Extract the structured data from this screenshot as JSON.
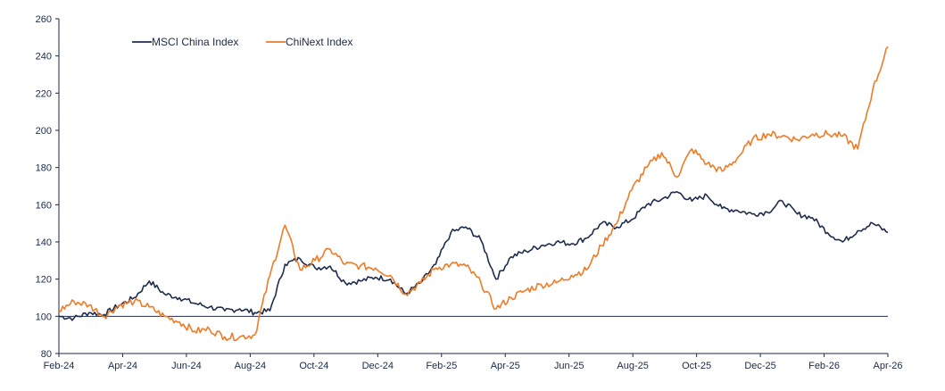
{
  "chart_data": {
    "type": "line",
    "title": "",
    "xlabel": "",
    "ylabel": "",
    "ylim": [
      80,
      260
    ],
    "yticks": [
      80,
      100,
      120,
      140,
      160,
      180,
      200,
      220,
      240,
      260
    ],
    "x_tick_labels": [
      "Feb-24",
      "Apr-24",
      "Jun-24",
      "Aug-24",
      "Oct-24",
      "Dec-24",
      "Feb-25",
      "Apr-25",
      "Jun-25",
      "Aug-25",
      "Oct-25",
      "Dec-25",
      "Feb-26",
      "Apr-26"
    ],
    "reference_line": 100,
    "legend_position": "top-left",
    "grid": false,
    "colors": {
      "axis": "#1a2a4a",
      "reference": "#1f2d4d"
    },
    "series": [
      {
        "name": "MSCI China Index",
        "color": "#1f2d4d",
        "x": [
          "Feb-24",
          "Feb-24",
          "Mar-24",
          "Mar-24",
          "Apr-24",
          "Apr-24",
          "May-24",
          "May-24",
          "Jun-24",
          "Jun-24",
          "Jul-24",
          "Jul-24",
          "Aug-24",
          "Aug-24",
          "Sep-24",
          "Sep-24",
          "Sep-24",
          "Oct-24",
          "Oct-24",
          "Nov-24",
          "Nov-24",
          "Dec-24",
          "Dec-24",
          "Jan-25",
          "Jan-25",
          "Feb-25",
          "Feb-25",
          "Mar-25",
          "Mar-25",
          "Mar-25",
          "Apr-25",
          "Apr-25",
          "May-25",
          "May-25",
          "Jun-25",
          "Jun-25",
          "Jul-25",
          "Jul-25",
          "Aug-25",
          "Aug-25",
          "Sep-25",
          "Sep-25",
          "Oct-25",
          "Oct-25",
          "Nov-25",
          "Nov-25",
          "Dec-25",
          "Dec-25",
          "Jan-26",
          "Jan-26",
          "Feb-26",
          "Feb-26",
          "Mar-26",
          "Mar-26",
          "Apr-26",
          "Apr-26"
        ],
        "values": [
          100,
          99,
          102,
          101,
          106,
          110,
          119,
          112,
          110,
          107,
          105,
          103,
          104,
          102,
          103,
          128,
          131,
          126,
          127,
          118,
          119,
          121,
          120,
          112,
          118,
          128,
          145,
          148,
          141,
          120,
          132,
          135,
          138,
          140,
          139,
          142,
          150,
          148,
          152,
          160,
          163,
          167,
          162,
          165,
          158,
          157,
          155,
          156,
          162,
          155,
          153,
          145,
          140,
          146,
          150,
          145
        ]
      },
      {
        "name": "ChiNext Index",
        "color": "#ee7b26",
        "x": [
          "Feb-24",
          "Feb-24",
          "Mar-24",
          "Mar-24",
          "Apr-24",
          "Apr-24",
          "May-24",
          "May-24",
          "Jun-24",
          "Jun-24",
          "Jul-24",
          "Jul-24",
          "Aug-24",
          "Aug-24",
          "Sep-24",
          "Sep-24",
          "Sep-24",
          "Oct-24",
          "Oct-24",
          "Nov-24",
          "Nov-24",
          "Dec-24",
          "Dec-24",
          "Jan-25",
          "Jan-25",
          "Feb-25",
          "Feb-25",
          "Mar-25",
          "Mar-25",
          "Mar-25",
          "Apr-25",
          "Apr-25",
          "May-25",
          "May-25",
          "Jun-25",
          "Jun-25",
          "Jul-25",
          "Jul-25",
          "Aug-25",
          "Aug-25",
          "Sep-25",
          "Sep-25",
          "Oct-25",
          "Oct-25",
          "Nov-25",
          "Nov-25",
          "Dec-25",
          "Dec-25",
          "Jan-26",
          "Jan-26",
          "Feb-26",
          "Feb-26",
          "Mar-26",
          "Mar-26",
          "Apr-26",
          "Apr-26"
        ],
        "values": [
          103,
          108,
          106,
          100,
          106,
          108,
          105,
          100,
          97,
          92,
          93,
          89,
          89,
          90,
          122,
          149,
          125,
          130,
          136,
          128,
          127,
          126,
          122,
          112,
          118,
          126,
          128,
          127,
          118,
          104,
          110,
          114,
          117,
          118,
          122,
          125,
          138,
          150,
          168,
          180,
          188,
          175,
          190,
          182,
          178,
          185,
          195,
          198,
          197,
          195,
          198,
          198,
          197,
          190,
          222,
          245
        ]
      }
    ]
  }
}
